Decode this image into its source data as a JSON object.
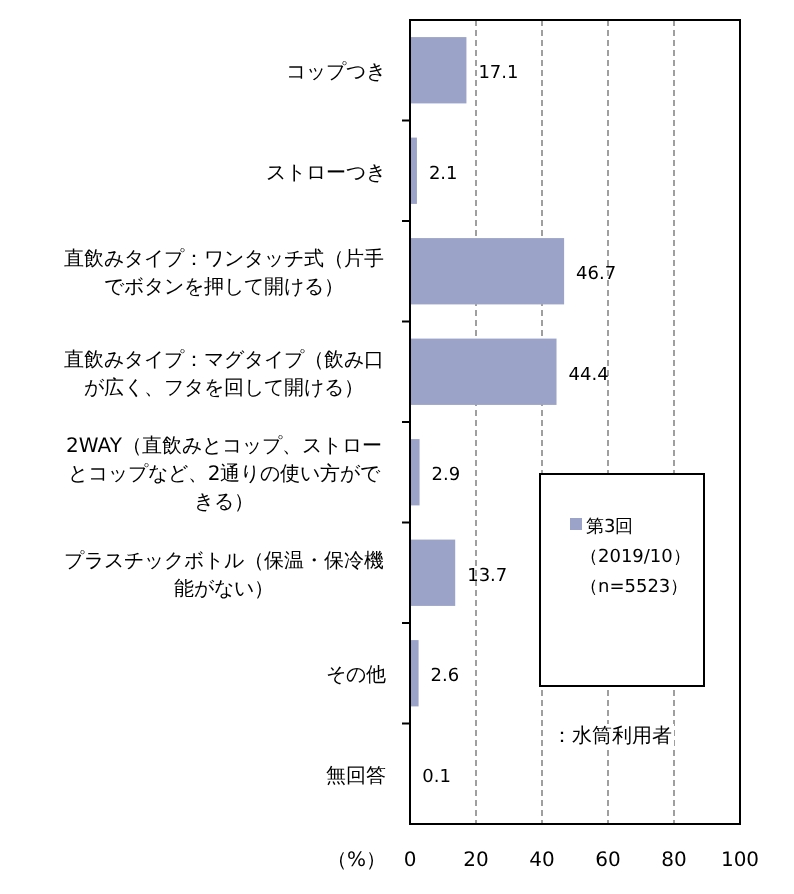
{
  "chart_data": {
    "type": "bar",
    "orientation": "horizontal",
    "categories": [
      "コップつき",
      "ストローつき",
      "直飲みタイプ：ワンタッチ式（片手でボタンを押して開ける）",
      "直飲みタイプ：マグタイプ（飲み口が広く、フタを回して開ける）",
      "2WAY（直飲みとコップ、ストローとコップなど、2通りの使い方ができる）",
      "プラスチックボトル（保温・保冷機能がない）",
      "その他",
      "無回答"
    ],
    "series": [
      {
        "name": "第3回（2019/10）（n=5523）",
        "color": "#9ba3c8",
        "values": [
          17.1,
          2.1,
          46.7,
          44.4,
          2.9,
          13.7,
          2.6,
          0.1
        ]
      }
    ],
    "data_labels": true,
    "xlim": [
      0,
      100
    ],
    "xticks": [
      0,
      20,
      40,
      60,
      80,
      100
    ],
    "xlabel": "（%）",
    "grid": "x",
    "legend": "right",
    "annotations": [
      "：水筒利用者"
    ]
  }
}
